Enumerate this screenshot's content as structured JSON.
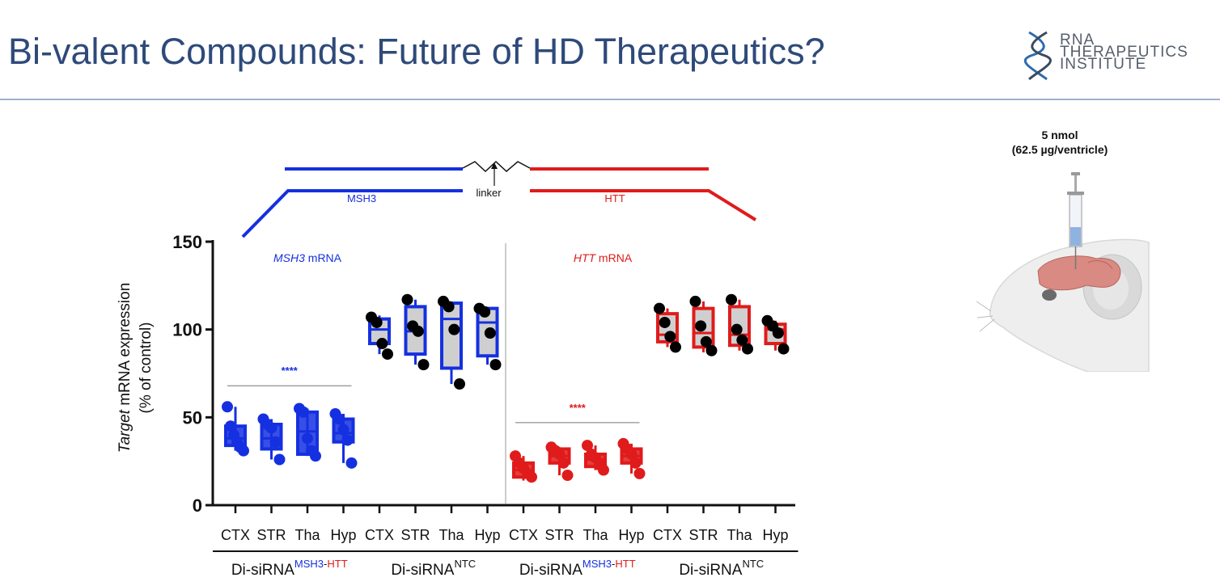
{
  "slide": {
    "title": "Bi-valent Compounds: Future of HD Therapeutics?",
    "logo_lines": [
      "RNA",
      "THERAPEUTICS",
      "INSTITUTE"
    ]
  },
  "diagram": {
    "left_strand_label": "MSH3",
    "right_strand_label": "HTT",
    "linker_label": "linker"
  },
  "dose": {
    "line1": "5 nmol",
    "line2": "(62.5 µg/ventricle)"
  },
  "chart_data": {
    "type": "box",
    "ylabel_italic": "Target",
    "ylabel_rest": " mRNA expression",
    "ylabel_line2": "(% of control)",
    "ylim": [
      0,
      150
    ],
    "yticks": [
      0,
      50,
      100,
      150
    ],
    "categories": [
      "CTX",
      "STR",
      "Tha",
      "Hyp",
      "CTX",
      "STR",
      "Tha",
      "Hyp",
      "CTX",
      "STR",
      "Tha",
      "Hyp",
      "CTX",
      "STR",
      "Tha",
      "Hyp"
    ],
    "panels": [
      {
        "label_italic": "MSH3",
        "label_rest": " mRNA",
        "color": "#1530e0",
        "significance": "****"
      },
      {
        "label_italic": "HTT",
        "label_rest": " mRNA",
        "color": "#e01b1b",
        "significance": "****"
      }
    ],
    "groups": [
      {
        "base": "Di-siRNA",
        "sup_a": "MSH3",
        "sup_sep": "-",
        "sup_b": "HTT",
        "sup_a_color": "#1530e0",
        "sup_b_color": "#e01b1b"
      },
      {
        "base": "Di-siRNA",
        "sup_a": "NTC",
        "sup_sep": "",
        "sup_b": "",
        "sup_a_color": "#111111",
        "sup_b_color": "#111111"
      },
      {
        "base": "Di-siRNA",
        "sup_a": "MSH3",
        "sup_sep": "-",
        "sup_b": "HTT",
        "sup_a_color": "#1530e0",
        "sup_b_color": "#e01b1b"
      },
      {
        "base": "Di-siRNA",
        "sup_a": "NTC",
        "sup_sep": "",
        "sup_b": "",
        "sup_a_color": "#111111",
        "sup_b_color": "#111111"
      }
    ],
    "boxes": [
      {
        "panel": 0,
        "treated": true,
        "min": 31,
        "q1": 34,
        "median": 38,
        "q3": 45,
        "max": 56,
        "points": [
          56,
          45,
          40,
          36,
          33,
          31
        ]
      },
      {
        "panel": 0,
        "treated": true,
        "min": 26,
        "q1": 32,
        "median": 38,
        "q3": 46,
        "max": 49,
        "points": [
          49,
          46,
          44,
          36,
          26
        ]
      },
      {
        "panel": 0,
        "treated": true,
        "min": 28,
        "q1": 29,
        "median": 42,
        "q3": 53,
        "max": 55,
        "points": [
          55,
          53,
          38,
          31,
          28
        ]
      },
      {
        "panel": 0,
        "treated": true,
        "min": 24,
        "q1": 36,
        "median": 41,
        "q3": 49,
        "max": 52,
        "points": [
          52,
          49,
          43,
          37,
          24
        ]
      },
      {
        "panel": 0,
        "treated": false,
        "min": 86,
        "q1": 92,
        "median": 100,
        "q3": 106,
        "max": 108,
        "points": [
          107,
          104,
          92,
          86
        ]
      },
      {
        "panel": 0,
        "treated": false,
        "min": 80,
        "q1": 86,
        "median": 99,
        "q3": 113,
        "max": 117,
        "points": [
          117,
          102,
          99,
          80
        ]
      },
      {
        "panel": 0,
        "treated": false,
        "min": 69,
        "q1": 78,
        "median": 106,
        "q3": 115,
        "max": 116,
        "points": [
          116,
          113,
          100,
          69
        ]
      },
      {
        "panel": 0,
        "treated": false,
        "min": 80,
        "q1": 85,
        "median": 104,
        "q3": 112,
        "max": 112,
        "points": [
          112,
          110,
          98,
          80
        ]
      },
      {
        "panel": 1,
        "treated": true,
        "min": 14,
        "q1": 16,
        "median": 20,
        "q3": 24,
        "max": 28,
        "points": [
          28,
          24,
          21,
          18,
          16
        ]
      },
      {
        "panel": 1,
        "treated": true,
        "min": 17,
        "q1": 24,
        "median": 28,
        "q3": 32,
        "max": 33,
        "points": [
          33,
          31,
          29,
          24,
          17
        ]
      },
      {
        "panel": 1,
        "treated": true,
        "min": 20,
        "q1": 22,
        "median": 26,
        "q3": 29,
        "max": 34,
        "points": [
          34,
          29,
          27,
          23,
          20
        ]
      },
      {
        "panel": 1,
        "treated": true,
        "min": 18,
        "q1": 24,
        "median": 28,
        "q3": 32,
        "max": 35,
        "points": [
          35,
          32,
          29,
          24,
          18
        ]
      },
      {
        "panel": 1,
        "treated": false,
        "min": 90,
        "q1": 93,
        "median": 97,
        "q3": 109,
        "max": 112,
        "points": [
          112,
          104,
          96,
          90
        ]
      },
      {
        "panel": 1,
        "treated": false,
        "min": 87,
        "q1": 90,
        "median": 98,
        "q3": 112,
        "max": 116,
        "points": [
          116,
          102,
          93,
          88
        ]
      },
      {
        "panel": 1,
        "treated": false,
        "min": 88,
        "q1": 91,
        "median": 97,
        "q3": 113,
        "max": 117,
        "points": [
          117,
          100,
          94,
          89
        ]
      },
      {
        "panel": 1,
        "treated": false,
        "min": 88,
        "q1": 92,
        "median": 100,
        "q3": 103,
        "max": 105,
        "points": [
          105,
          102,
          98,
          89
        ]
      }
    ]
  }
}
